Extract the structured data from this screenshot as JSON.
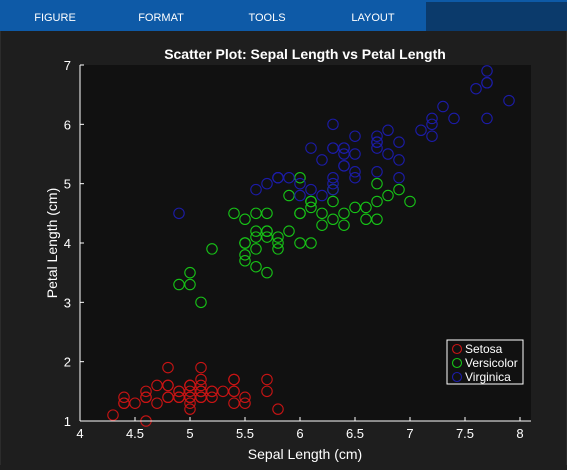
{
  "toolstrip": {
    "tabs": [
      {
        "label": "FIGURE"
      },
      {
        "label": "FORMAT"
      },
      {
        "label": "TOOLS"
      },
      {
        "label": "LAYOUT"
      }
    ]
  },
  "colors": {
    "toolstrip": "#0e5aa7",
    "figure_bg": "#1e1e1e",
    "axes_bg": "#111111",
    "axes_fg": "#ffffff",
    "setosa": "#c81414",
    "versicolor": "#17c317",
    "virginica": "#1c1ca8"
  },
  "chart_data": {
    "type": "scatter",
    "title": "Scatter Plot: Sepal Length vs Petal Length",
    "xlabel": "Sepal Length (cm)",
    "ylabel": "Petal Length (cm)",
    "xlim": [
      4,
      8.1
    ],
    "ylim": [
      1,
      7
    ],
    "xticks": [
      "4",
      "4.5",
      "5",
      "5.5",
      "6",
      "6.5",
      "7",
      "7.5",
      "8"
    ],
    "yticks": [
      "1",
      "2",
      "3",
      "4",
      "5",
      "6",
      "7"
    ],
    "grid": false,
    "legend_position": "bottom-right",
    "marker": "open-circle",
    "series": [
      {
        "name": "Setosa",
        "color": "#c81414",
        "points": [
          [
            5.1,
            1.4
          ],
          [
            4.9,
            1.4
          ],
          [
            4.7,
            1.3
          ],
          [
            4.6,
            1.5
          ],
          [
            5.0,
            1.4
          ],
          [
            5.4,
            1.7
          ],
          [
            4.6,
            1.4
          ],
          [
            5.0,
            1.5
          ],
          [
            4.4,
            1.4
          ],
          [
            4.9,
            1.5
          ],
          [
            5.4,
            1.5
          ],
          [
            4.8,
            1.6
          ],
          [
            4.8,
            1.4
          ],
          [
            4.3,
            1.1
          ],
          [
            5.8,
            1.2
          ],
          [
            5.7,
            1.5
          ],
          [
            5.4,
            1.3
          ],
          [
            5.1,
            1.4
          ],
          [
            5.7,
            1.7
          ],
          [
            5.1,
            1.5
          ],
          [
            5.4,
            1.7
          ],
          [
            5.1,
            1.5
          ],
          [
            4.6,
            1.0
          ],
          [
            5.1,
            1.7
          ],
          [
            4.8,
            1.9
          ],
          [
            5.0,
            1.6
          ],
          [
            5.0,
            1.6
          ],
          [
            5.2,
            1.5
          ],
          [
            5.2,
            1.4
          ],
          [
            4.7,
            1.6
          ],
          [
            4.8,
            1.6
          ],
          [
            5.4,
            1.5
          ],
          [
            5.2,
            1.5
          ],
          [
            5.5,
            1.4
          ],
          [
            4.9,
            1.5
          ],
          [
            5.0,
            1.2
          ],
          [
            5.5,
            1.3
          ],
          [
            4.9,
            1.4
          ],
          [
            4.4,
            1.3
          ],
          [
            5.1,
            1.5
          ],
          [
            5.0,
            1.3
          ],
          [
            4.5,
            1.3
          ],
          [
            4.4,
            1.3
          ],
          [
            5.0,
            1.6
          ],
          [
            5.1,
            1.9
          ],
          [
            4.8,
            1.4
          ],
          [
            5.1,
            1.6
          ],
          [
            4.6,
            1.4
          ],
          [
            5.3,
            1.5
          ],
          [
            5.0,
            1.4
          ]
        ]
      },
      {
        "name": "Versicolor",
        "color": "#17c317",
        "points": [
          [
            7.0,
            4.7
          ],
          [
            6.4,
            4.5
          ],
          [
            6.9,
            4.9
          ],
          [
            5.5,
            4.0
          ],
          [
            6.5,
            4.6
          ],
          [
            5.7,
            4.5
          ],
          [
            6.3,
            4.7
          ],
          [
            4.9,
            3.3
          ],
          [
            6.6,
            4.6
          ],
          [
            5.2,
            3.9
          ],
          [
            5.0,
            3.5
          ],
          [
            5.9,
            4.2
          ],
          [
            6.0,
            4.0
          ],
          [
            6.1,
            4.7
          ],
          [
            5.6,
            3.6
          ],
          [
            6.7,
            4.4
          ],
          [
            5.6,
            4.5
          ],
          [
            5.8,
            4.1
          ],
          [
            6.2,
            4.5
          ],
          [
            5.6,
            3.9
          ],
          [
            5.9,
            4.8
          ],
          [
            6.1,
            4.0
          ],
          [
            6.3,
            4.9
          ],
          [
            6.1,
            4.7
          ],
          [
            6.4,
            4.3
          ],
          [
            6.6,
            4.4
          ],
          [
            6.8,
            4.8
          ],
          [
            6.7,
            5.0
          ],
          [
            6.0,
            4.5
          ],
          [
            5.7,
            3.5
          ],
          [
            5.5,
            3.8
          ],
          [
            5.5,
            3.7
          ],
          [
            5.8,
            3.9
          ],
          [
            6.0,
            5.1
          ],
          [
            5.4,
            4.5
          ],
          [
            6.0,
            4.5
          ],
          [
            6.7,
            4.7
          ],
          [
            6.3,
            4.4
          ],
          [
            5.6,
            4.1
          ],
          [
            5.5,
            4.0
          ],
          [
            5.5,
            4.4
          ],
          [
            6.1,
            4.6
          ],
          [
            5.8,
            4.0
          ],
          [
            5.0,
            3.3
          ],
          [
            5.6,
            4.2
          ],
          [
            5.7,
            4.2
          ],
          [
            5.7,
            4.2
          ],
          [
            6.2,
            4.3
          ],
          [
            5.1,
            3.0
          ],
          [
            5.7,
            4.1
          ]
        ]
      },
      {
        "name": "Virginica",
        "color": "#1c1ca8",
        "points": [
          [
            6.3,
            6.0
          ],
          [
            5.8,
            5.1
          ],
          [
            7.1,
            5.9
          ],
          [
            6.3,
            5.6
          ],
          [
            6.5,
            5.8
          ],
          [
            7.6,
            6.6
          ],
          [
            4.9,
            4.5
          ],
          [
            7.3,
            6.3
          ],
          [
            6.7,
            5.8
          ],
          [
            7.2,
            6.1
          ],
          [
            6.5,
            5.1
          ],
          [
            6.4,
            5.3
          ],
          [
            6.8,
            5.5
          ],
          [
            5.7,
            5.0
          ],
          [
            5.8,
            5.1
          ],
          [
            6.4,
            5.3
          ],
          [
            6.5,
            5.5
          ],
          [
            7.7,
            6.7
          ],
          [
            7.7,
            6.9
          ],
          [
            6.0,
            5.0
          ],
          [
            6.9,
            5.7
          ],
          [
            5.6,
            4.9
          ],
          [
            7.7,
            6.7
          ],
          [
            6.3,
            4.9
          ],
          [
            6.7,
            5.7
          ],
          [
            7.2,
            6.0
          ],
          [
            6.2,
            4.8
          ],
          [
            6.1,
            4.9
          ],
          [
            6.4,
            5.6
          ],
          [
            7.2,
            5.8
          ],
          [
            7.4,
            6.1
          ],
          [
            7.9,
            6.4
          ],
          [
            6.4,
            5.6
          ],
          [
            6.3,
            5.1
          ],
          [
            6.1,
            5.6
          ],
          [
            7.7,
            6.1
          ],
          [
            6.3,
            5.6
          ],
          [
            6.4,
            5.5
          ],
          [
            6.0,
            4.8
          ],
          [
            6.9,
            5.4
          ],
          [
            6.7,
            5.6
          ],
          [
            6.9,
            5.1
          ],
          [
            5.8,
            5.1
          ],
          [
            6.8,
            5.9
          ],
          [
            6.7,
            5.7
          ],
          [
            6.7,
            5.2
          ],
          [
            6.3,
            5.0
          ],
          [
            6.5,
            5.2
          ],
          [
            6.2,
            5.4
          ],
          [
            5.9,
            5.1
          ]
        ]
      }
    ]
  }
}
